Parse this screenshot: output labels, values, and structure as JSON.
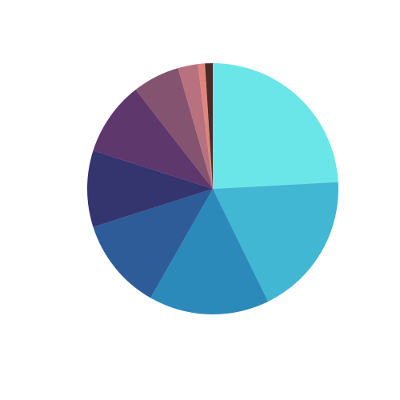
{
  "chart_data": {
    "type": "pie",
    "title": "",
    "start_angle_deg": 90,
    "direction": "clockwise",
    "slices": [
      {
        "label": "",
        "value": 24.3,
        "color": "#6be6e8"
      },
      {
        "label": "",
        "value": 18.7,
        "color": "#41b7d4"
      },
      {
        "label": "",
        "value": 15.6,
        "color": "#2c8abb"
      },
      {
        "label": "",
        "value": 11.9,
        "color": "#2d5c98"
      },
      {
        "label": "",
        "value": 9.9,
        "color": "#34346e"
      },
      {
        "label": "",
        "value": 9.6,
        "color": "#5e376c"
      },
      {
        "label": "",
        "value": 6.1,
        "color": "#84536f"
      },
      {
        "label": "",
        "value": 2.6,
        "color": "#b8717f"
      },
      {
        "label": "",
        "value": 0.9,
        "color": "#e0857d"
      },
      {
        "label": "",
        "value": 1.0,
        "color": "#4a2b27"
      }
    ]
  }
}
